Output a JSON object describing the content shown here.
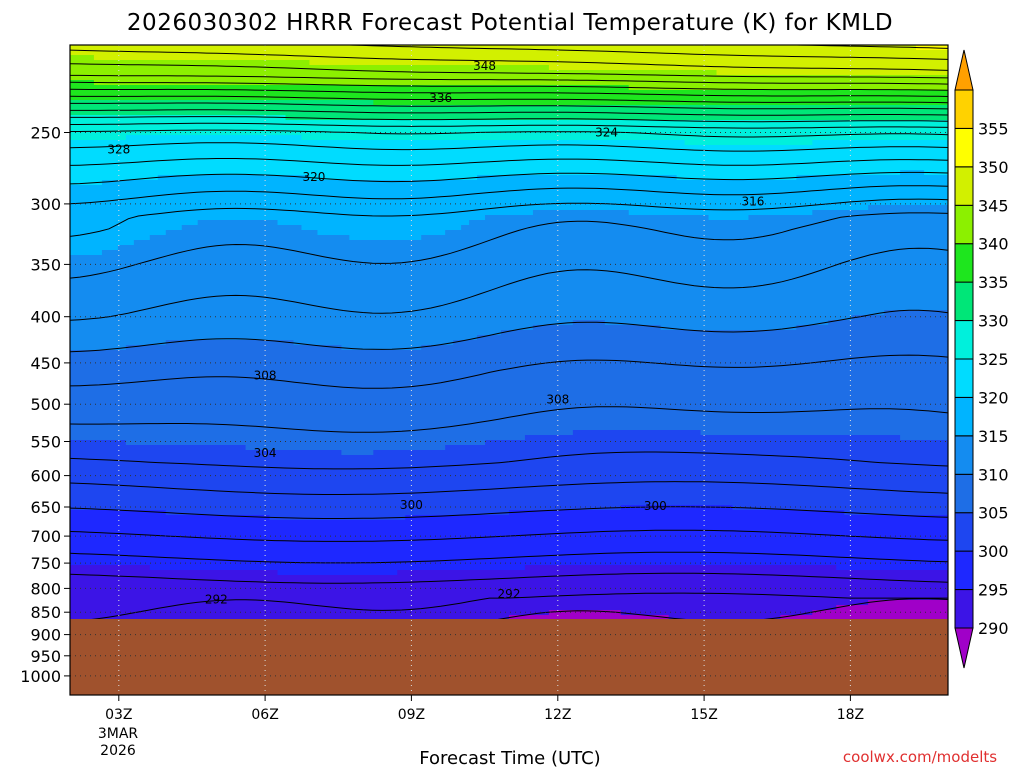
{
  "chart_data": {
    "type": "contour",
    "title": "2026030302 HRRR Forecast Potential Temperature (K) for KMLD",
    "xlabel": "Forecast Time (UTC)",
    "ylabel": "",
    "credit": "coolwx.com/modelts",
    "x_ticks": [
      "03Z",
      "06Z",
      "09Z",
      "12Z",
      "15Z",
      "18Z"
    ],
    "x_tick_hours": [
      3,
      6,
      9,
      12,
      15,
      18
    ],
    "x_range_hours": [
      2,
      20
    ],
    "x_date_label": [
      "3MAR",
      "2026"
    ],
    "y_ticks": [
      250,
      300,
      350,
      400,
      450,
      500,
      550,
      600,
      650,
      700,
      750,
      800,
      850,
      900,
      950,
      1000
    ],
    "y_range_hPa": [
      200,
      1050
    ],
    "y_scale": "log",
    "surface_pressure_hPa": 865,
    "colorbar": {
      "levels": [
        285,
        290,
        295,
        300,
        305,
        310,
        315,
        320,
        325,
        330,
        335,
        340,
        345,
        350,
        355,
        360
      ],
      "tick_labels": [
        "290",
        "295",
        "300",
        "305",
        "310",
        "315",
        "320",
        "325",
        "330",
        "335",
        "340",
        "345",
        "350",
        "355"
      ],
      "colors": [
        "#a000c8",
        "#3c14e6",
        "#1e28ff",
        "#1e46f0",
        "#1e6ee6",
        "#148cf0",
        "#00b4ff",
        "#00dcff",
        "#00f0dc",
        "#00e678",
        "#1ee61e",
        "#8cf000",
        "#d2f000",
        "#ffff00",
        "#ffd200",
        "#ffa000"
      ],
      "extend": "both"
    },
    "contour_labels": [
      {
        "text": "348",
        "hour": 10.5,
        "p": 211
      },
      {
        "text": "336",
        "hour": 9.6,
        "p": 229
      },
      {
        "text": "324",
        "hour": 13.0,
        "p": 250
      },
      {
        "text": "328",
        "hour": 3.0,
        "p": 261
      },
      {
        "text": "320",
        "hour": 7.0,
        "p": 280
      },
      {
        "text": "316",
        "hour": 16.0,
        "p": 298
      },
      {
        "text": "308",
        "hour": 6.0,
        "p": 465
      },
      {
        "text": "308",
        "hour": 12.0,
        "p": 494
      },
      {
        "text": "304",
        "hour": 6.0,
        "p": 566
      },
      {
        "text": "300",
        "hour": 9.0,
        "p": 647
      },
      {
        "text": "300",
        "hour": 14.0,
        "p": 648
      },
      {
        "text": "292",
        "hour": 5.0,
        "p": 823
      },
      {
        "text": "292",
        "hour": 11.0,
        "p": 812
      }
    ],
    "grid": true,
    "terrain_color": "#a0522d"
  }
}
